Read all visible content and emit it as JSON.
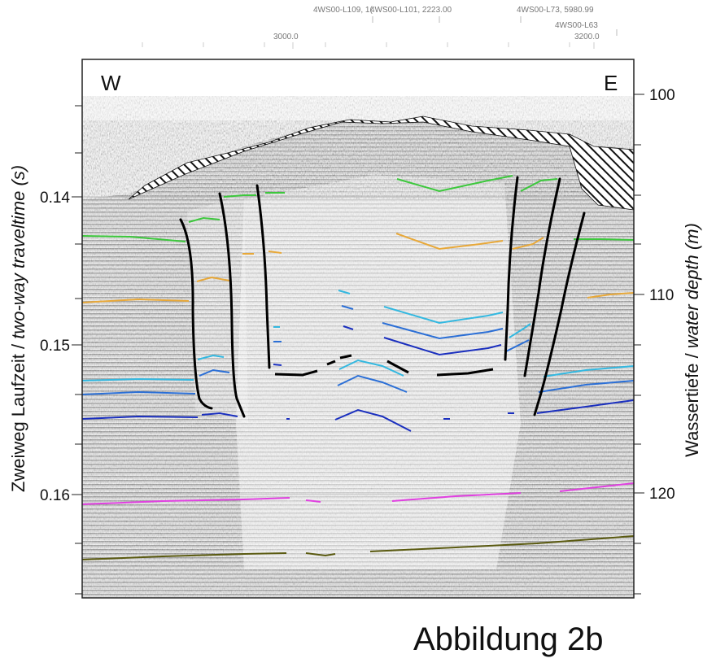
{
  "header": {
    "trace_labels": [
      {
        "text": "4WS00-L109, 1("
      },
      {
        "text": "4WS00-L101, 2223.00"
      },
      {
        "text": "4WS00-L73, 5980.99"
      },
      {
        "text": "4WS00-L63"
      }
    ],
    "cdp_ticks": [
      {
        "value": 3000,
        "text": "3000.0"
      },
      {
        "value": 3200,
        "text": "3200.0"
      }
    ]
  },
  "chart_data": {
    "type": "seismic-section",
    "title": "",
    "direction_labels": {
      "west": "W",
      "east": "E"
    },
    "ylabel_left": {
      "prefix": "Zweiweg Laufzeit / ",
      "italic": "two-way traveltime (s)"
    },
    "ylabel_right": {
      "prefix": "Wassertiefe / ",
      "italic": "water depth (m)"
    },
    "y_left_ticks": [
      "0.14",
      "0.15",
      "0.16"
    ],
    "y_right_ticks": [
      "100",
      "110",
      "120"
    ],
    "ylim_left_s": [
      0.132,
      0.167
    ],
    "ylim_right_m": [
      97.5,
      125.5
    ],
    "colors": {
      "green": "#3cc83c",
      "orange": "#e8a838",
      "cyan": "#33b8e0",
      "mid_blue": "#2b6fd6",
      "dark_blue": "#1a2fbf",
      "magenta": "#e040e0",
      "olive": "#5a5a10",
      "fault": "#000000",
      "hatch": "#000000"
    }
  },
  "caption": "Abbildung 2b"
}
